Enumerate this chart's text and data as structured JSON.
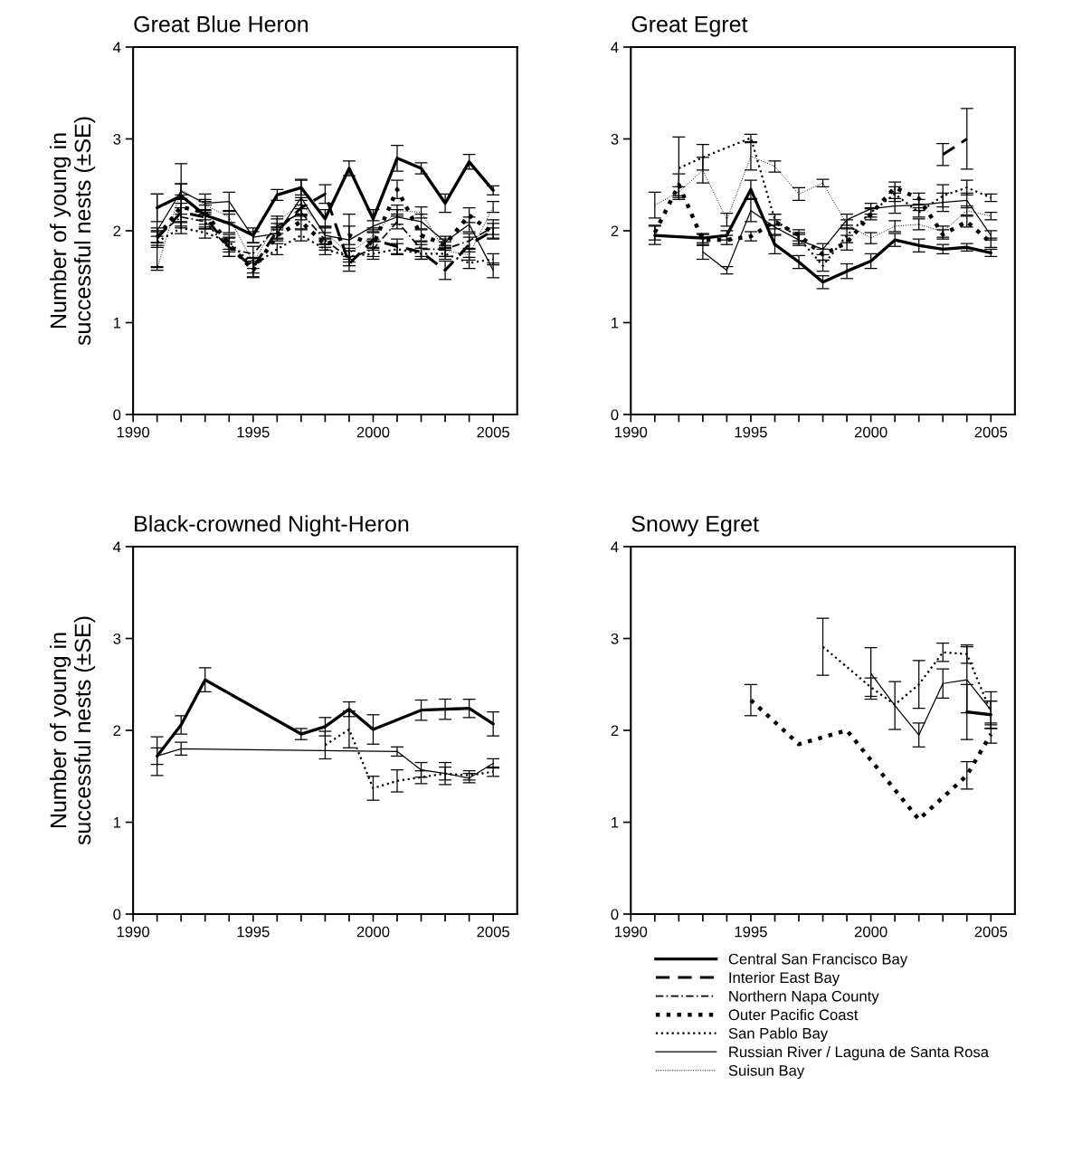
{
  "chart_data": [
    {
      "type": "line",
      "title": "Great Blue Heron",
      "ylabel": "Number of young in\nsuccessful nests (±SE)",
      "xlim": [
        1990,
        2006
      ],
      "ylim": [
        0,
        4
      ],
      "yticks": [
        0,
        1,
        2,
        3,
        4
      ],
      "xticks": [
        1990,
        {
          "value": 1991,
          "label": null
        },
        {
          "value": 1992,
          "label": null
        },
        {
          "value": 1993,
          "label": null
        },
        {
          "value": 1994,
          "label": null
        },
        1995,
        {
          "value": 1996,
          "label": null
        },
        {
          "value": 1997,
          "label": null
        },
        {
          "value": 1998,
          "label": null
        },
        {
          "value": 1999,
          "label": null
        },
        2000,
        {
          "value": 2001,
          "label": null
        },
        {
          "value": 2002,
          "label": null
        },
        {
          "value": 2003,
          "label": null
        },
        {
          "value": 2004,
          "label": null
        },
        2005
      ],
      "x": [
        1991,
        1992,
        1993,
        1994,
        1995,
        1996,
        1997,
        1998,
        1999,
        2000,
        2001,
        2002,
        2003,
        2004,
        2005
      ],
      "grid": false,
      "legend": "bottom",
      "series": [
        {
          "name": "Central San Francisco Bay",
          "color": "#000000",
          "line_style": "solid",
          "values": [
            2.25,
            2.38,
            2.17,
            2.08,
            1.95,
            2.39,
            2.47,
            2.13,
            2.68,
            2.13,
            2.79,
            2.68,
            2.3,
            2.75,
            2.44
          ],
          "errors": [
            0.15,
            0.35,
            0.15,
            0.1,
            0.08,
            0.06,
            0.08,
            0.1,
            0.08,
            0.1,
            0.14,
            0.06,
            0.1,
            0.08,
            0.05
          ]
        },
        {
          "name": "Interior East Bay",
          "color": "#000000",
          "line_style": "dashed",
          "values": [
            1.92,
            2.2,
            2.15,
            1.82,
            1.6,
            2.0,
            2.25,
            2.4,
            1.64,
            1.9,
            1.83,
            1.77,
            1.57,
            1.85,
            2.0
          ],
          "errors": [
            0.08,
            0.1,
            0.08,
            0.1,
            0.1,
            0.08,
            0.08,
            0.1,
            0.08,
            0.08,
            0.08,
            0.08,
            0.1,
            0.08,
            0.08
          ]
        },
        {
          "name": "Northern Napa County",
          "color": "#000000",
          "line_style": "dashdot",
          "values": [
            1.95,
            2.15,
            2.1,
            1.8,
            1.75,
            2.05,
            2.2,
            1.9,
            1.7,
            1.8,
            2.1,
            1.8,
            1.8,
            1.89,
            2.04
          ],
          "errors": [
            0.08,
            0.1,
            0.08,
            0.08,
            0.08,
            0.08,
            0.08,
            0.08,
            0.08,
            0.08,
            0.08,
            0.08,
            0.08,
            0.08,
            0.08
          ]
        },
        {
          "name": "Outer Pacific Coast",
          "color": "#000000",
          "line_style": "dotted",
          "values": [
            1.93,
            2.26,
            2.2,
            1.85,
            1.57,
            1.95,
            2.1,
            1.85,
            1.95,
            1.85,
            2.45,
            1.95,
            1.85,
            2.17,
            1.97
          ],
          "errors": [
            0.06,
            0.08,
            0.08,
            0.08,
            0.08,
            0.06,
            0.08,
            0.06,
            0.1,
            0.06,
            0.1,
            0.06,
            0.06,
            0.08,
            0.06
          ]
        },
        {
          "name": "San Pablo Bay",
          "color": "#000000",
          "line_style": "dotted",
          "values": [
            1.88,
            2.03,
            1.98,
            1.88,
            1.62,
            1.8,
            1.95,
            1.8,
            1.72,
            1.75,
            1.8,
            1.75,
            1.75,
            1.65,
            1.69
          ],
          "errors": [
            0.06,
            0.06,
            0.06,
            0.08,
            0.08,
            0.06,
            0.06,
            0.06,
            0.06,
            0.06,
            0.06,
            0.06,
            0.06,
            0.06,
            0.06
          ]
        },
        {
          "name": "Russian River / Laguna de Santa Rosa",
          "color": "#000000",
          "line_style": "solid",
          "values": [
            2.0,
            2.43,
            2.3,
            2.32,
            1.93,
            1.97,
            2.36,
            1.95,
            1.9,
            2.05,
            2.15,
            2.1,
            1.88,
            2.07,
            1.57
          ],
          "errors": [
            0.4,
            0.08,
            0.1,
            0.1,
            0.06,
            0.06,
            0.2,
            0.1,
            0.28,
            0.06,
            0.08,
            0.08,
            0.06,
            0.08,
            0.08
          ]
        },
        {
          "name": "Suisun Bay",
          "color": "#000000",
          "line_style": "dotted",
          "values": [
            1.59,
            2.45,
            2.28,
            2.15,
            1.65,
            2.1,
            2.3,
            1.98,
            1.75,
            1.95,
            2.22,
            2.2,
            1.78,
            1.74,
            2.26
          ],
          "errors": [
            0.02,
            0.06,
            0.06,
            0.06,
            0.06,
            0.06,
            0.06,
            0.06,
            0.06,
            0.06,
            0.06,
            0.06,
            0.06,
            0.06,
            0.06
          ]
        }
      ]
    },
    {
      "type": "line",
      "title": "Great Egret",
      "xlim": [
        1990,
        2006
      ],
      "ylim": [
        0,
        4
      ],
      "yticks": [
        0,
        1,
        2,
        3,
        4
      ],
      "xticks": [
        1990,
        {
          "value": 1991,
          "label": null
        },
        {
          "value": 1992,
          "label": null
        },
        {
          "value": 1993,
          "label": null
        },
        {
          "value": 1994,
          "label": null
        },
        1995,
        {
          "value": 1996,
          "label": null
        },
        {
          "value": 1997,
          "label": null
        },
        {
          "value": 1998,
          "label": null
        },
        {
          "value": 1999,
          "label": null
        },
        2000,
        {
          "value": 2001,
          "label": null
        },
        {
          "value": 2002,
          "label": null
        },
        {
          "value": 2003,
          "label": null
        },
        {
          "value": 2004,
          "label": null
        },
        2005
      ],
      "x": [
        1991,
        1992,
        1993,
        1994,
        1995,
        1996,
        1997,
        1998,
        1999,
        2000,
        2001,
        2002,
        2003,
        2004,
        2005
      ],
      "grid": false,
      "legend": false,
      "series": [
        {
          "name": "Central San Francisco Bay",
          "color": "#000000",
          "line_style": "solid",
          "values": [
            1.95,
            null,
            1.92,
            1.95,
            2.45,
            1.85,
            1.66,
            1.44,
            1.56,
            1.67,
            1.9,
            1.84,
            1.8,
            1.82,
            1.76
          ],
          "errors": [
            0.1,
            null,
            0.05,
            0.05,
            0.1,
            0.1,
            0.07,
            0.07,
            0.08,
            0.08,
            0.07,
            0.07,
            0.05,
            0.04,
            0.04
          ]
        },
        {
          "name": "Interior East Bay",
          "color": "#000000",
          "line_style": "dashed",
          "values": [
            null,
            null,
            null,
            null,
            null,
            null,
            null,
            null,
            null,
            null,
            null,
            null,
            2.83,
            3.0,
            null
          ],
          "errors": [
            null,
            null,
            null,
            null,
            null,
            null,
            null,
            null,
            null,
            null,
            null,
            null,
            0.12,
            0.33,
            null
          ]
        },
        {
          "name": "Outer Pacific Coast",
          "color": "#000000",
          "line_style": "dotted",
          "values": [
            1.98,
            2.5,
            1.9,
            1.9,
            1.94,
            2.1,
            1.95,
            1.74,
            1.87,
            2.18,
            2.47,
            2.35,
            1.96,
            2.1,
            1.87
          ],
          "errors": [
            0.08,
            0.12,
            0.06,
            0.05,
            0.05,
            0.08,
            0.06,
            0.06,
            0.08,
            0.06,
            0.06,
            0.06,
            0.05,
            0.06,
            0.05
          ]
        },
        {
          "name": "San Pablo Bay",
          "color": "#000000",
          "line_style": "dotted",
          "values": [
            null,
            2.68,
            2.8,
            null,
            3.01,
            2.12,
            1.92,
            1.62,
            1.95,
            2.2,
            2.4,
            2.2,
            2.38,
            2.47,
            2.36
          ],
          "errors": [
            null,
            0.34,
            0.14,
            null,
            0.04,
            0.06,
            0.06,
            0.06,
            0.08,
            0.05,
            0.08,
            0.05,
            0.12,
            0.08,
            0.04
          ]
        },
        {
          "name": "Russian River / Laguna de Santa Rosa",
          "color": "#000000",
          "line_style": "solid",
          "values": [
            null,
            null,
            1.77,
            1.57,
            2.22,
            2.04,
            1.9,
            1.8,
            2.12,
            2.24,
            2.27,
            2.28,
            2.31,
            2.33,
            1.95
          ],
          "errors": [
            null,
            null,
            0.08,
            0.04,
            0.12,
            0.08,
            0.06,
            0.06,
            0.06,
            0.06,
            0.08,
            0.06,
            0.1,
            0.08,
            0.05
          ]
        },
        {
          "name": "Suisun Bay",
          "color": "#000000",
          "line_style": "dotted",
          "values": [
            2.28,
            2.42,
            2.66,
            2.12,
            2.81,
            2.7,
            2.4,
            2.52,
            2.07,
            1.92,
            2.05,
            2.07,
            1.99,
            2.22,
            2.16
          ],
          "errors": [
            0.14,
            0.06,
            0.14,
            0.07,
            0.15,
            0.06,
            0.07,
            0.04,
            0.05,
            0.06,
            0.06,
            0.06,
            0.06,
            0.05,
            0.04
          ]
        }
      ]
    },
    {
      "type": "line",
      "title": "Black-crowned Night-Heron",
      "ylabel": "Number of young in\nsuccessful nests (±SE)",
      "xlim": [
        1990,
        2006
      ],
      "ylim": [
        0,
        4
      ],
      "yticks": [
        0,
        1,
        2,
        3,
        4
      ],
      "xticks": [
        1990,
        {
          "value": 1991,
          "label": null
        },
        {
          "value": 1992,
          "label": null
        },
        {
          "value": 1993,
          "label": null
        },
        {
          "value": 1994,
          "label": null
        },
        1995,
        {
          "value": 1996,
          "label": null
        },
        {
          "value": 1997,
          "label": null
        },
        {
          "value": 1998,
          "label": null
        },
        {
          "value": 1999,
          "label": null
        },
        2000,
        {
          "value": 2001,
          "label": null
        },
        {
          "value": 2002,
          "label": null
        },
        {
          "value": 2003,
          "label": null
        },
        {
          "value": 2004,
          "label": null
        },
        2005
      ],
      "x": [
        1991,
        1992,
        1993,
        1997,
        1998,
        1999,
        2000,
        2001,
        2002,
        2003,
        2004,
        2005
      ],
      "grid": false,
      "legend": false,
      "series": [
        {
          "name": "Central San Francisco Bay",
          "color": "#000000",
          "line_style": "solid",
          "values": [
            1.72,
            2.06,
            2.55,
            1.96,
            2.04,
            2.23,
            2.01,
            null,
            2.22,
            2.23,
            2.24,
            2.07
          ],
          "errors": [
            0.21,
            0.1,
            0.13,
            0.06,
            0.1,
            0.08,
            0.16,
            null,
            0.11,
            0.11,
            0.1,
            0.13
          ]
        },
        {
          "name": "San Pablo Bay",
          "color": "#000000",
          "line_style": "dotted",
          "values": [
            null,
            null,
            null,
            null,
            1.84,
            2.01,
            1.37,
            1.45,
            1.49,
            1.53,
            1.51,
            1.55
          ],
          "errors": [
            null,
            null,
            null,
            null,
            0.15,
            0.2,
            0.13,
            0.12,
            0.07,
            0.07,
            0.05,
            0.05
          ]
        },
        {
          "name": "Russian River / Laguna de Santa Rosa",
          "color": "#000000",
          "line_style": "solid",
          "values": [
            1.72,
            1.8,
            null,
            null,
            null,
            null,
            null,
            1.77,
            1.57,
            1.53,
            1.48,
            1.64
          ],
          "errors": [
            0.09,
            0.07,
            null,
            null,
            null,
            null,
            null,
            0.05,
            0.08,
            0.12,
            0.05,
            0.05
          ]
        }
      ]
    },
    {
      "type": "line",
      "title": "Snowy Egret",
      "xlim": [
        1990,
        2006
      ],
      "ylim": [
        0,
        4
      ],
      "yticks": [
        0,
        1,
        2,
        3,
        4
      ],
      "xticks": [
        1990,
        {
          "value": 1991,
          "label": null
        },
        {
          "value": 1992,
          "label": null
        },
        {
          "value": 1993,
          "label": null
        },
        {
          "value": 1994,
          "label": null
        },
        1995,
        {
          "value": 1996,
          "label": null
        },
        {
          "value": 1997,
          "label": null
        },
        {
          "value": 1998,
          "label": null
        },
        {
          "value": 1999,
          "label": null
        },
        2000,
        {
          "value": 2001,
          "label": null
        },
        {
          "value": 2002,
          "label": null
        },
        {
          "value": 2003,
          "label": null
        },
        {
          "value": 2004,
          "label": null
        },
        2005
      ],
      "x": [
        1995,
        1997,
        1998,
        1999,
        2000,
        2001,
        2002,
        2003,
        2004,
        2005
      ],
      "grid": false,
      "legend": false,
      "series": [
        {
          "name": "Central San Francisco Bay",
          "color": "#000000",
          "line_style": "solid",
          "values": [
            null,
            null,
            null,
            null,
            null,
            null,
            null,
            null,
            2.2,
            2.17
          ],
          "errors": [
            null,
            null,
            null,
            null,
            null,
            null,
            null,
            null,
            0.3,
            0.15
          ]
        },
        {
          "name": "Outer Pacific Coast",
          "color": "#000000",
          "line_style": "dotted",
          "values": [
            2.33,
            1.85,
            null,
            2.0,
            null,
            null,
            1.03,
            null,
            1.51,
            1.96
          ],
          "errors": [
            0.17,
            null,
            null,
            null,
            null,
            null,
            null,
            null,
            0.15,
            0.1
          ]
        },
        {
          "name": "San Pablo Bay",
          "color": "#000000",
          "line_style": "dotted",
          "values": [
            null,
            null,
            2.91,
            null,
            2.47,
            2.28,
            2.5,
            2.85,
            2.83,
            2.2
          ],
          "errors": [
            null,
            null,
            0.31,
            null,
            0.1,
            null,
            0.26,
            0.1,
            0.1,
            0.12
          ]
        },
        {
          "name": "Russian River / Laguna de Santa Rosa",
          "color": "#000000",
          "line_style": "solid",
          "values": [
            null,
            null,
            null,
            null,
            2.62,
            2.27,
            1.95,
            2.51,
            2.55,
            2.22
          ],
          "errors": [
            null,
            null,
            null,
            null,
            0.28,
            0.26,
            0.13,
            0.16,
            0.36,
            0.2
          ]
        }
      ]
    }
  ]
}
